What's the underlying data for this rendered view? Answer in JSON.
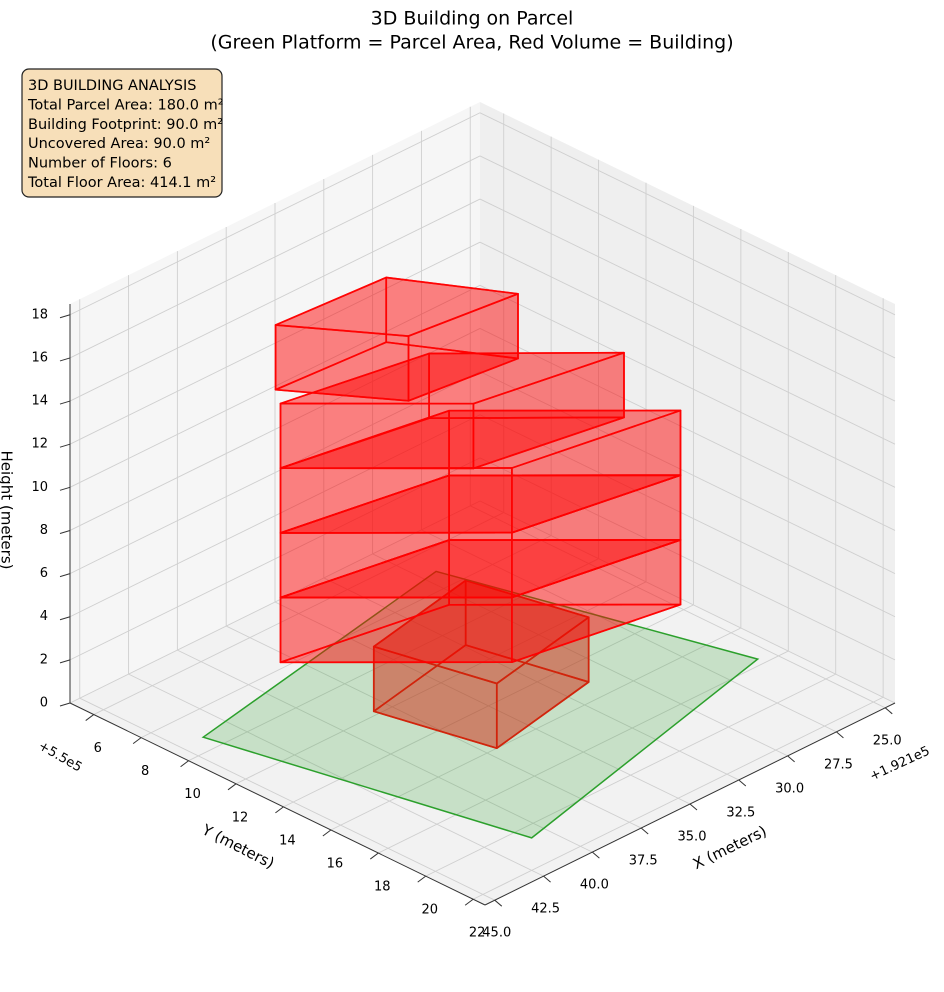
{
  "chart_data": {
    "type": "building3d",
    "title": "3D Building on Parcel",
    "subtitle": "(Green Platform = Parcel Area, Red Volume = Building)",
    "annotation": [
      "3D BUILDING ANALYSIS",
      "Total Parcel Area: 180.0 m²",
      "Building Footprint: 90.0 m²",
      "Uncovered Area: 90.0 m²",
      "Number of Floors: 6",
      "Total Floor Area: 414.1 m²"
    ],
    "xlabel": "X (meters)",
    "ylabel": "Y (meters)",
    "zlabel": "Height (meters)",
    "x_offset": "+1.921e5",
    "y_offset": "+5.5e5",
    "xlim": [
      24.5,
      45.5
    ],
    "ylim": [
      5,
      22.5
    ],
    "zlim": [
      0,
      18.5
    ],
    "xticks": [
      {
        "value": 25,
        "label": "25.0"
      },
      {
        "value": 27.5,
        "label": "27.5"
      },
      {
        "value": 30,
        "label": "30.0"
      },
      {
        "value": 32.5,
        "label": "32.5"
      },
      {
        "value": 35,
        "label": "35.0"
      },
      {
        "value": 37.5,
        "label": "37.5"
      },
      {
        "value": 40,
        "label": "40.0"
      },
      {
        "value": 42.5,
        "label": "42.5"
      },
      {
        "value": 45,
        "label": "45.0"
      }
    ],
    "yticks": [
      6,
      8,
      10,
      12,
      14,
      16,
      18,
      20,
      22
    ],
    "zticks": [
      0,
      2,
      4,
      6,
      8,
      10,
      12,
      14,
      16,
      18
    ],
    "grid": true,
    "parcel": {
      "color": "#2ca02c",
      "x": [
        43.9,
        40.8,
        25.7,
        29.3
      ],
      "y": [
        9.3,
        20.6,
        17.7,
        7.1
      ]
    },
    "building": {
      "color": "#ff0000",
      "floors": [
        {
          "x": [
            37,
            31.2,
            32.4,
            38.2
          ],
          "y": [
            16.0,
            15.1,
            10.9,
            11.8
          ],
          "z": [
            0,
            3
          ]
        },
        {
          "x": [
            35.5,
            28.2,
            34.1,
            41.4
          ],
          "y": [
            15.4,
            16.5,
            11.6,
            10.5
          ],
          "z": [
            3,
            6
          ]
        },
        {
          "x": [
            35.5,
            28.2,
            34.1,
            41.4
          ],
          "y": [
            15.4,
            16.5,
            11.6,
            10.5
          ],
          "z": [
            6,
            9
          ]
        },
        {
          "x": [
            35.5,
            28.2,
            34.1,
            41.4
          ],
          "y": [
            15.4,
            16.5,
            11.6,
            10.5
          ],
          "z": [
            9,
            12
          ]
        },
        {
          "x": [
            36.5,
            30,
            35,
            41.4
          ],
          "y": [
            14.6,
            15.6,
            11.5,
            10.5
          ],
          "z": [
            12,
            15
          ]
        },
        {
          "x": [
            38,
            33,
            35.5,
            40.8
          ],
          "y": [
            13.1,
            13.6,
            10.1,
            9.8
          ],
          "z": [
            15,
            18
          ]
        }
      ]
    }
  }
}
